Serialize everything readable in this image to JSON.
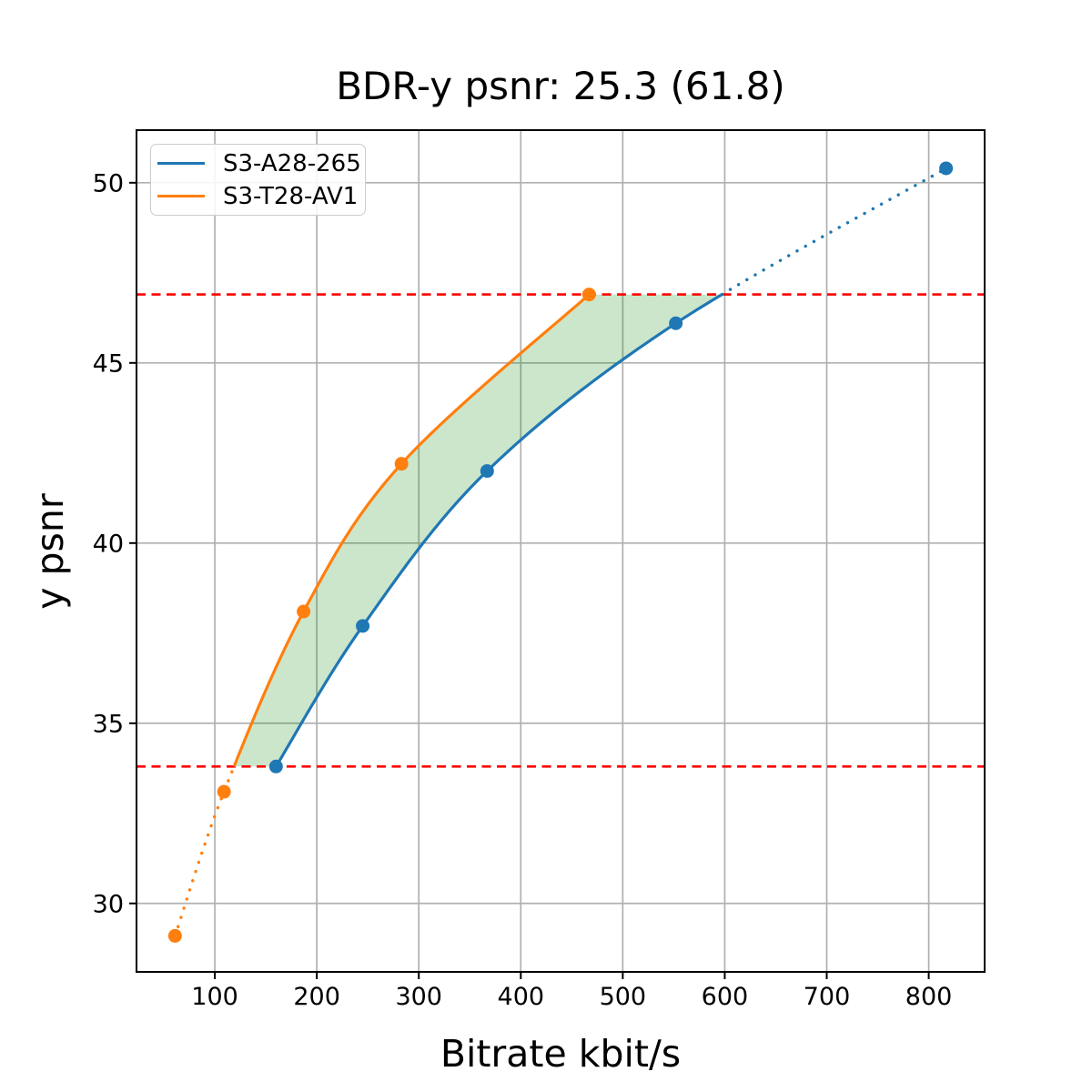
{
  "chart_data": {
    "type": "line",
    "title": "BDR-y psnr: 25.3 (61.8)",
    "xlabel": "Bitrate kbit/s",
    "ylabel": "y psnr",
    "xlim": [
      23.2,
      854.8
    ],
    "ylim": [
      28.1,
      51.46
    ],
    "xticks": [
      100,
      200,
      300,
      400,
      500,
      600,
      700,
      800
    ],
    "yticks": [
      30,
      35,
      40,
      45,
      50
    ],
    "grid": true,
    "grid_color": "#b0b0b0",
    "legend_position": "upper-left",
    "series": [
      {
        "name": "S3-A28-265",
        "color": "#1f77b4",
        "marker": "circle",
        "x": [
          160,
          245,
          367,
          552,
          817
        ],
        "y": [
          33.8,
          37.7,
          42.0,
          46.1,
          50.4
        ]
      },
      {
        "name": "S3-T28-AV1",
        "color": "#ff7f0e",
        "marker": "circle",
        "x": [
          61,
          109,
          187,
          283,
          467
        ],
        "y": [
          29.1,
          33.1,
          38.1,
          42.2,
          46.9
        ]
      }
    ],
    "overlap_lines": {
      "color": "#ff0000",
      "style": "dashed",
      "y_top": 46.9,
      "y_bottom": 33.8
    },
    "shaded_region": {
      "fill": "rgba(0,128,0,0.2)",
      "description": "area between the two rate-distortion curves inside the overlap interval"
    }
  }
}
